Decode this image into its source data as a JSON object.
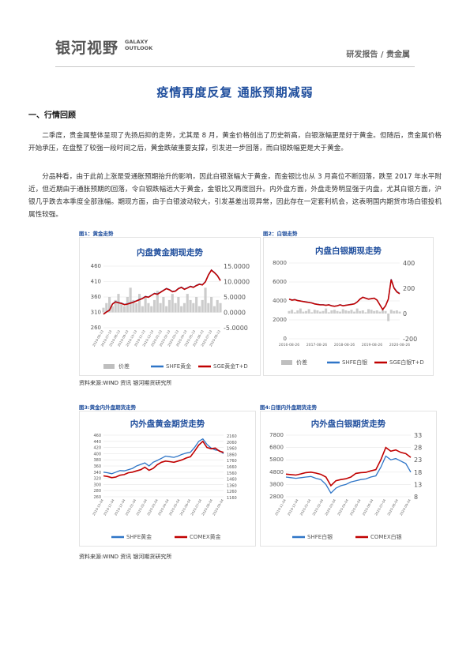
{
  "header": {
    "logo_cn": "银河视野",
    "logo_en1": "GALAXY",
    "logo_en2": "OUTLOOK",
    "category": "研发报告 / 贵金属"
  },
  "title": "疫情再度反复 通胀预期减弱",
  "section1": "一、行情回顾",
  "para1": "二季度，贵金属整体呈现了先扬后抑的走势，尤其是 8 月，黄金价格创出了历史新高，白银涨幅更是好于黄金。但随后，贵金属价格开始承压，在盘整了较强一段时间之后，黄金跌破重要支撑，引发进一步回落，而白银跌幅更是大于黄金。",
  "para2": "分品种看，由于此前上涨是受通胀预期抬升的影响，因此白银涨幅大于黄金，而金银比也从 3 月高位不断回落，跌至 2017 年水平附近，但近期由于通胀预期的回落，令白银跌幅远大于黄金，金银比又再度回升。内外盘方面，外盘走势明显强于内盘，尤其白银方面，沪银几乎跌去本季度全部涨幅。期现方面，由于白银波动较大，引发基差出现异常，因此存在一定套利机会，这表明国内期货市场白银投机属性较强。",
  "fig1": {
    "label": "图1：黄金走势",
    "title": "内盘黄金期现走势",
    "legend": [
      "价差",
      "SHFE黄金",
      "SGE黄金T+D"
    ]
  },
  "fig2": {
    "label": "图2：白银走势",
    "title": "内盘白银期现走势",
    "legend": [
      "价差",
      "SHFE白银",
      "SGE白银T+D"
    ]
  },
  "fig3": {
    "label": "图3:黄金内外盘期货走势",
    "title": "内外盘黄金期货走势",
    "legend": [
      "SHFE黄金",
      "COMEX黄金"
    ]
  },
  "fig4": {
    "label": "图4:白银内外盘期货走势",
    "title": "内外盘白银期货走势",
    "legend": [
      "SHFE白银",
      "COMEX白银"
    ]
  },
  "source1": "资料来源:WIND 资讯  银河期货研究所",
  "source2": "资料来源:WIND 资讯  银河期货研究所",
  "colors": {
    "blue": "#2e75c7",
    "red": "#c00000",
    "gray": "#bfbfbf",
    "title_blue": "#1f4e9d"
  },
  "chart_data": [
    {
      "type": "line",
      "title": "内盘黄金期现走势",
      "x_ticks": [
        "2019-06-13",
        "2019-07-13",
        "2019-08-13",
        "2019-09-13",
        "2019-10-13",
        "2019-11-13",
        "2019-12-13",
        "2020-01-13",
        "2020-02-13",
        "2020-03-13",
        "2020-04-13",
        "2020-05-13",
        "2020-06-13",
        "2020-07-13",
        "2020-08-13"
      ],
      "y_left": {
        "ticks": [
          260,
          310,
          360,
          410,
          460
        ],
        "lim": [
          260,
          460
        ]
      },
      "y_right": {
        "ticks": [
          "-5.0000",
          "0.0000",
          "5.0000",
          "10.0000",
          "15.0000"
        ],
        "lim": [
          -5,
          15
        ]
      },
      "series": [
        {
          "name": "价差",
          "axis": "right",
          "kind": "bar",
          "values": [
            1.5,
            3,
            5,
            2,
            4,
            6,
            3,
            2,
            5,
            8,
            4,
            3,
            6,
            2,
            5,
            3,
            2,
            4,
            7,
            3,
            5,
            2,
            4,
            6,
            3,
            5,
            2,
            3,
            6,
            4,
            3,
            5,
            2,
            4,
            8,
            3,
            5,
            2,
            4,
            3
          ]
        },
        {
          "name": "SHFE黄金",
          "axis": "left",
          "values": [
            305,
            312,
            318,
            338,
            345,
            342,
            340,
            336,
            338,
            341,
            344,
            348,
            352,
            356,
            362,
            360,
            366,
            372,
            370,
            376,
            382,
            388,
            384,
            378,
            380,
            388,
            392,
            386,
            390,
            395,
            392,
            398,
            402,
            400,
            410,
            432,
            448,
            440,
            430,
            414
          ]
        },
        {
          "name": "SGE黄金T+D",
          "axis": "left",
          "values": [
            304,
            311,
            317,
            337,
            344,
            341,
            339,
            335,
            337,
            340,
            343,
            347,
            351,
            355,
            361,
            359,
            365,
            371,
            369,
            375,
            381,
            387,
            383,
            377,
            379,
            387,
            391,
            385,
            389,
            394,
            391,
            397,
            401,
            399,
            409,
            431,
            447,
            439,
            429,
            413
          ]
        }
      ]
    },
    {
      "type": "line",
      "title": "内盘白银期现走势",
      "x_ticks": [
        "2016-08-26",
        "2017-08-26",
        "2018-08-26",
        "2019-08-26",
        "2020-08-26"
      ],
      "y_left": {
        "ticks": [
          0,
          2000,
          4000,
          6000,
          8000
        ],
        "lim": [
          0,
          8000
        ]
      },
      "y_right": {
        "ticks": [
          -200,
          0,
          200,
          400
        ],
        "lim": [
          -200,
          400
        ]
      },
      "series": [
        {
          "name": "价差",
          "axis": "right",
          "kind": "bar",
          "values": [
            20,
            30,
            10,
            25,
            40,
            15,
            20,
            35,
            10,
            30,
            25,
            15,
            20,
            40,
            10,
            25,
            30,
            20,
            15,
            35,
            25,
            20,
            30,
            15,
            40,
            20,
            25,
            10,
            35,
            30,
            20,
            25,
            15,
            30,
            20,
            -60,
            30,
            20,
            25,
            15
          ]
        },
        {
          "name": "SHFE白银",
          "axis": "left",
          "values": [
            4200,
            4100,
            4150,
            4050,
            4000,
            3950,
            3900,
            3850,
            3800,
            3700,
            3650,
            3600,
            3600,
            3550,
            3600,
            3500,
            3450,
            3500,
            3600,
            3500,
            3550,
            3600,
            3650,
            3700,
            3900,
            4200,
            4400,
            4300,
            4200,
            4250,
            4300,
            4100,
            3600,
            3100,
            3500,
            4200,
            6300,
            5400,
            5000,
            4800
          ]
        },
        {
          "name": "SGE白银T+D",
          "axis": "left",
          "values": [
            4180,
            4080,
            4130,
            4030,
            3980,
            3930,
            3880,
            3830,
            3780,
            3680,
            3630,
            3580,
            3580,
            3530,
            3580,
            3480,
            3430,
            3480,
            3580,
            3480,
            3530,
            3580,
            3630,
            3680,
            3880,
            4180,
            4380,
            4280,
            4180,
            4230,
            4280,
            4080,
            3580,
            3080,
            3480,
            4180,
            6250,
            5350,
            4950,
            4750
          ]
        }
      ]
    },
    {
      "type": "line",
      "title": "内外盘黄金期货走势",
      "x_ticks": [
        "2019-10-04",
        "2019-11-04",
        "2019-12-04",
        "2020-01-04",
        "2020-02-04",
        "2020-03-04",
        "2020-04-04",
        "2020-05-04",
        "2020-06-04",
        "2020-07-04",
        "2020-08-04",
        "2020-09-04"
      ],
      "y_left": {
        "ticks": [
          260,
          280,
          300,
          320,
          340,
          360,
          380,
          400,
          420,
          440,
          460
        ],
        "lim": [
          260,
          460
        ]
      },
      "y_right": {
        "ticks": [
          1160,
          1260,
          1360,
          1460,
          1560,
          1660,
          1760,
          1860,
          1960,
          2060,
          2160
        ],
        "lim": [
          1160,
          2160
        ]
      },
      "series": [
        {
          "name": "SHFE黄金",
          "axis": "left",
          "values": [
            340,
            338,
            335,
            340,
            345,
            344,
            348,
            352,
            360,
            365,
            370,
            360,
            372,
            378,
            385,
            392,
            390,
            388,
            392,
            398,
            402,
            405,
            420,
            440,
            448,
            430,
            418,
            412,
            410,
            400
          ]
        },
        {
          "name": "COMEX黄金",
          "axis": "right",
          "values": [
            1500,
            1490,
            1470,
            1480,
            1510,
            1520,
            1550,
            1560,
            1580,
            1600,
            1640,
            1590,
            1620,
            1680,
            1720,
            1740,
            1730,
            1720,
            1740,
            1760,
            1790,
            1810,
            1900,
            2000,
            2060,
            1960,
            1940,
            1950,
            1900,
            1880
          ]
        }
      ]
    },
    {
      "type": "line",
      "title": "内外盘白银期货走势",
      "x_ticks": [
        "2019-11-04",
        "2019-12-04",
        "2020-01-04",
        "2020-02-04",
        "2020-03-04",
        "2020-04-04",
        "2020-05-04",
        "2020-06-04",
        "2020-07-04",
        "2020-08-04",
        "2020-09-04"
      ],
      "y_left": {
        "ticks": [
          2800,
          3800,
          4800,
          5800,
          6800,
          7800
        ],
        "lim": [
          2800,
          7800
        ]
      },
      "y_right": {
        "ticks": [
          8,
          13,
          18,
          23,
          28,
          33
        ],
        "lim": [
          8,
          33
        ]
      },
      "series": [
        {
          "name": "SHFE白银",
          "axis": "left",
          "values": [
            4400,
            4350,
            4300,
            4350,
            4400,
            4450,
            4300,
            4200,
            3800,
            3100,
            3500,
            3700,
            3800,
            4000,
            4100,
            4200,
            4250,
            4400,
            4500,
            5200,
            6100,
            5800,
            5900,
            5700,
            5500,
            4800
          ]
        },
        {
          "name": "COMEX白银",
          "axis": "right",
          "values": [
            17.2,
            17.0,
            16.8,
            17.3,
            17.8,
            18.0,
            17.6,
            17.1,
            16.0,
            12.5,
            14.5,
            15.0,
            15.3,
            16.0,
            17.5,
            17.8,
            17.9,
            18.5,
            19.0,
            23.0,
            28.0,
            26.5,
            27.0,
            26.0,
            25.5,
            24.0
          ]
        }
      ]
    }
  ]
}
